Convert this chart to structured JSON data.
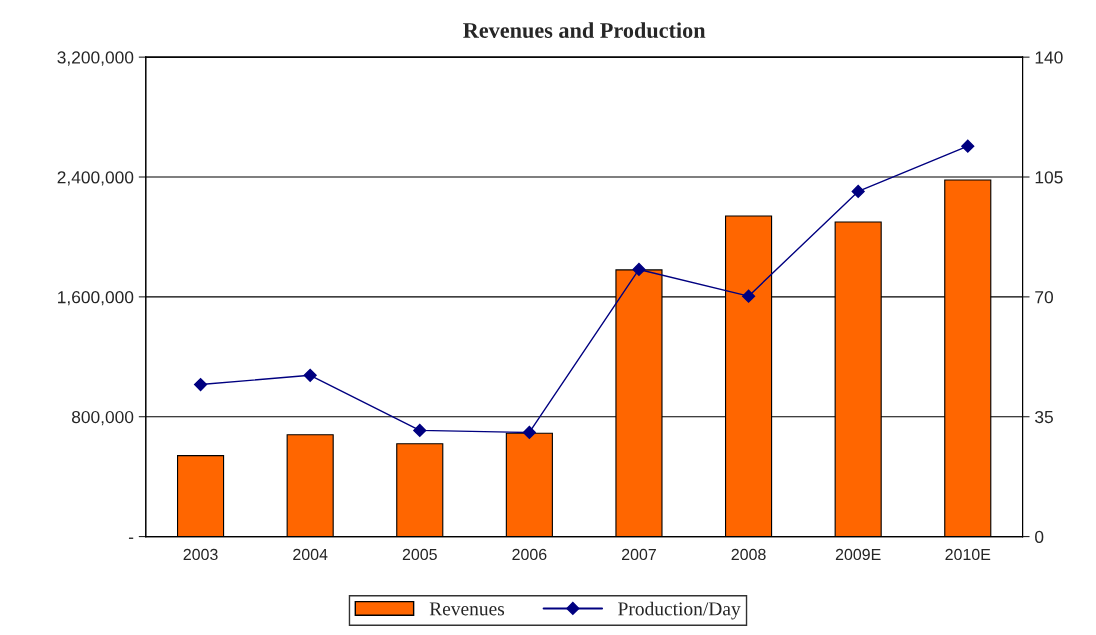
{
  "chart_data": {
    "type": "bar",
    "title": "Revenues and Production",
    "categories": [
      "2003",
      "2004",
      "2005",
      "2006",
      "2007",
      "2008",
      "2009E",
      "2010E"
    ],
    "series": [
      {
        "name": "Revenues",
        "color": "#ff6600",
        "values": [
          540000,
          680000,
          620000,
          690000,
          1780000,
          2140000,
          2100000,
          2380000
        ]
      },
      {
        "name": "Production/Day",
        "type": "line",
        "axis": "y2",
        "color": "#000080",
        "marker": "diamond",
        "values": [
          44.4,
          47.1,
          31,
          30.4,
          78,
          70.2,
          100.8,
          114
        ]
      }
    ],
    "ylim": [
      0,
      3200000
    ],
    "yticks": [
      {
        "value": 0,
        "label": "-"
      },
      {
        "value": 800000,
        "label": "800,000"
      },
      {
        "value": 1600000,
        "label": "1,600,000"
      },
      {
        "value": 2400000,
        "label": "2,400,000"
      },
      {
        "value": 3200000,
        "label": "3,200,000"
      }
    ],
    "y2lim": [
      0,
      140
    ],
    "y2ticks": [
      0,
      35,
      70,
      105,
      140
    ],
    "grid": "y",
    "legend": "bottom"
  }
}
